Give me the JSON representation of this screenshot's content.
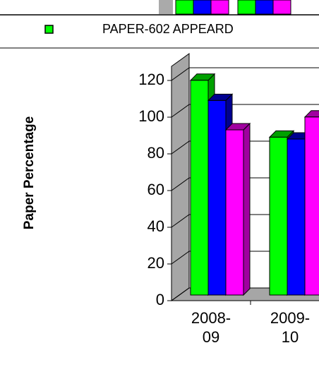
{
  "chart_data": {
    "type": "bar3d",
    "y_label": "Paper Percentage",
    "categories": [
      "2008-09",
      "2009-10"
    ],
    "series": [
      {
        "name": "PAPER-602 APPEARD",
        "color": "#00ff00",
        "values": [
          117,
          86
        ]
      },
      {
        "color": "#0000ff",
        "values": [
          106,
          85
        ]
      },
      {
        "color": "#ff00ff",
        "values": [
          90,
          97
        ]
      }
    ],
    "ylim": [
      0,
      120
    ],
    "yticks": [
      0,
      20,
      40,
      60,
      80,
      100,
      120
    ],
    "grid": true
  }
}
